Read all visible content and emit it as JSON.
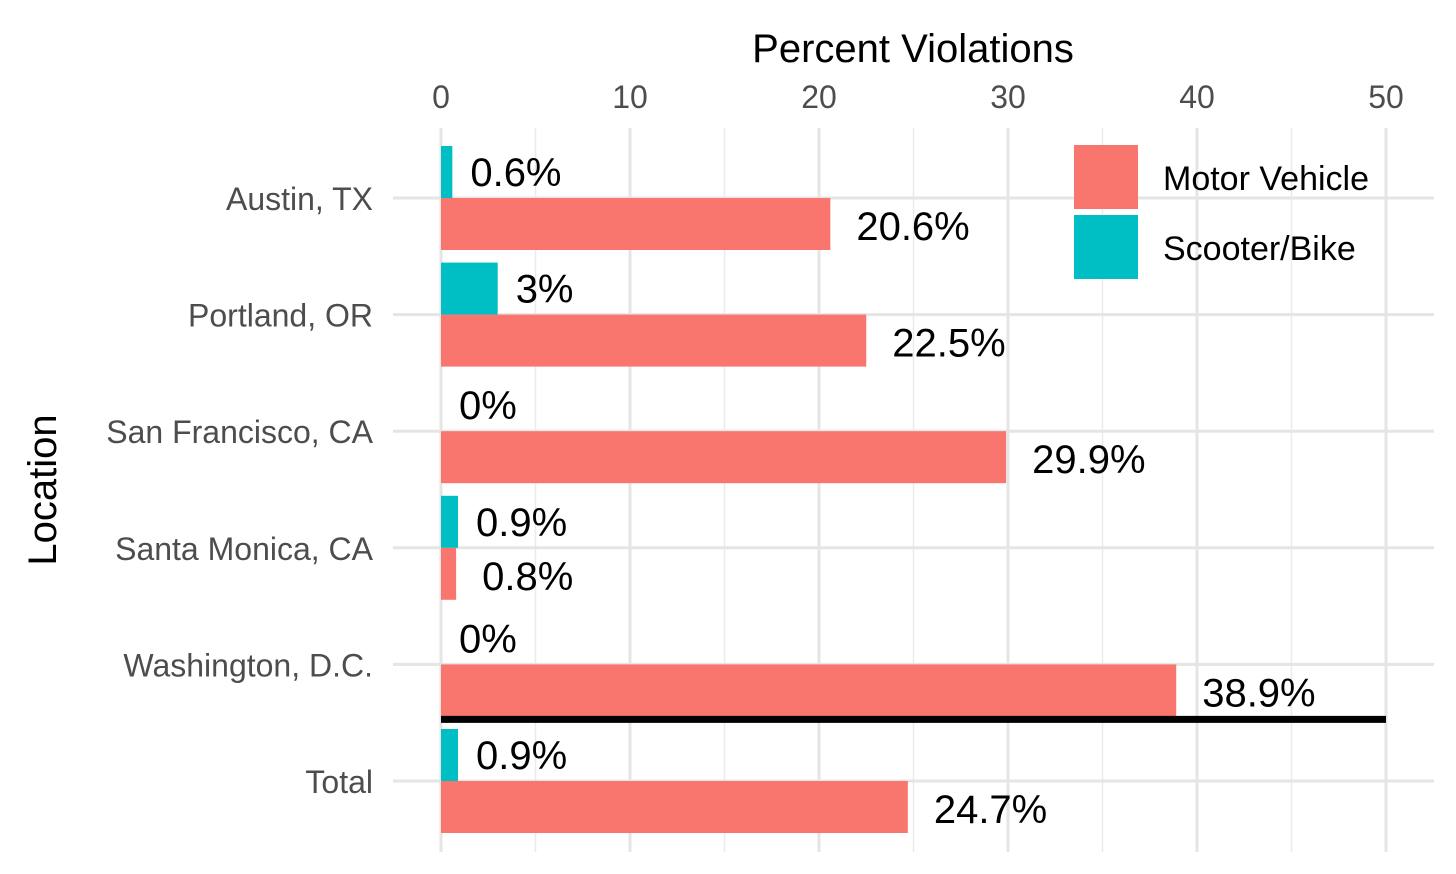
{
  "chart_data": {
    "type": "bar",
    "orientation": "horizontal",
    "xlabel": "Percent Violations",
    "ylabel": "Location",
    "xlim": [
      0,
      50
    ],
    "x_ticks": [
      0,
      10,
      20,
      30,
      40,
      50
    ],
    "x_axis_position": "top",
    "grid": true,
    "legend_position": "top-right",
    "categories": [
      "Austin, TX",
      "Portland, OR",
      "San Francisco, CA",
      "Santa Monica, CA",
      "Washington, D.C.",
      "Total"
    ],
    "series": [
      {
        "name": "Motor Vehicle",
        "color": "#F8766D",
        "values": [
          20.6,
          22.5,
          29.9,
          0.8,
          38.9,
          24.7
        ],
        "labels": [
          "20.6%",
          "22.5%",
          "29.9%",
          "0.8%",
          "38.9%",
          "24.7%"
        ]
      },
      {
        "name": "Scooter/Bike",
        "color": "#00BFC4",
        "values": [
          0.6,
          3,
          0,
          0.9,
          0,
          0.9
        ],
        "labels": [
          "0.6%",
          "3%",
          "0%",
          "0.9%",
          "0%",
          "0.9%"
        ]
      }
    ],
    "separator_line": {
      "between": [
        "Washington, D.C.",
        "Total"
      ],
      "color": "#000000"
    }
  }
}
